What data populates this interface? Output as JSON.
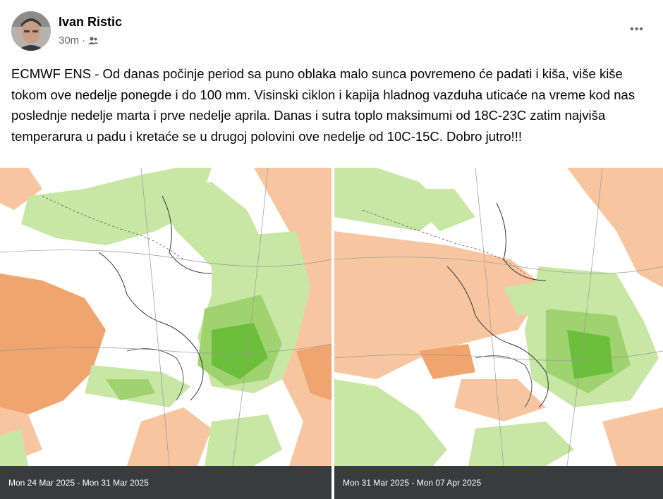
{
  "post": {
    "author": "Ivan Ristic",
    "time": "30m",
    "separator": "·",
    "audience_icon": "friends-icon",
    "menu_icon": "more-options-icon",
    "more_label": "•••",
    "text": "ECMWF ENS - Od danas počinje period sa puno oblaka malo sunca povremeno će padati i kiša, više kiše tokom ove nedelje ponegde i do 100 mm. Visinski ciklon i kapija hladnog vazduha uticaće na vreme kod nas poslednje nedelje marta i prve nedelje aprila. Danas i sutra toplo maksimumi od 18C-23C zatim najviša temperarura u padu i kretaće se u drugoj polovini ove nedelje od 10C-15C. Dobro jutro!!!"
  },
  "maps": [
    {
      "caption": "Mon 24 Mar 2025 - Mon 31 Mar 2025"
    },
    {
      "caption": "Mon 31 Mar 2025 - Mon 07 Apr 2025"
    }
  ],
  "colors": {
    "anomaly_dry": "#f7c6a0",
    "anomaly_dry_strong": "#f0a46e",
    "anomaly_wet": "#c8e6a4",
    "anomaly_wet_mid": "#9fd36f",
    "anomaly_wet_strong": "#6cbf3a",
    "caption_bg": "#3a3b3c"
  }
}
